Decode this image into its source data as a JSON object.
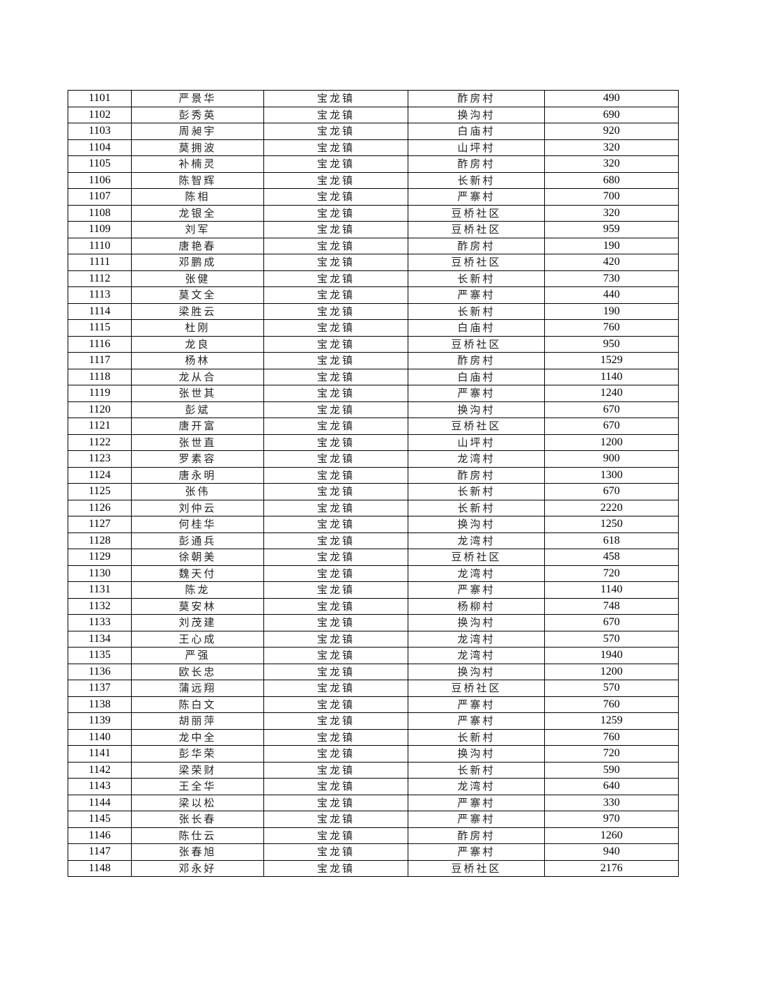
{
  "rows": [
    [
      "1101",
      "严景华",
      "宝龙镇",
      "酢房村",
      "490"
    ],
    [
      "1102",
      "彭秀英",
      "宝龙镇",
      "换沟村",
      "690"
    ],
    [
      "1103",
      "周昶宇",
      "宝龙镇",
      "白庙村",
      "920"
    ],
    [
      "1104",
      "莫拥波",
      "宝龙镇",
      "山坪村",
      "320"
    ],
    [
      "1105",
      "补楠灵",
      "宝龙镇",
      "酢房村",
      "320"
    ],
    [
      "1106",
      "陈智辉",
      "宝龙镇",
      "长新村",
      "680"
    ],
    [
      "1107",
      "陈相",
      "宝龙镇",
      "严寨村",
      "700"
    ],
    [
      "1108",
      "龙银全",
      "宝龙镇",
      "豆桥社区",
      "320"
    ],
    [
      "1109",
      "刘军",
      "宝龙镇",
      "豆桥社区",
      "959"
    ],
    [
      "1110",
      "唐艳春",
      "宝龙镇",
      "酢房村",
      "190"
    ],
    [
      "1111",
      "邓鹏成",
      "宝龙镇",
      "豆桥社区",
      "420"
    ],
    [
      "1112",
      "张健",
      "宝龙镇",
      "长新村",
      "730"
    ],
    [
      "1113",
      "莫文全",
      "宝龙镇",
      "严寨村",
      "440"
    ],
    [
      "1114",
      "梁胜云",
      "宝龙镇",
      "长新村",
      "190"
    ],
    [
      "1115",
      "杜刚",
      "宝龙镇",
      "白庙村",
      "760"
    ],
    [
      "1116",
      "龙良",
      "宝龙镇",
      "豆桥社区",
      "950"
    ],
    [
      "1117",
      "杨林",
      "宝龙镇",
      "酢房村",
      "1529"
    ],
    [
      "1118",
      "龙从合",
      "宝龙镇",
      "白庙村",
      "1140"
    ],
    [
      "1119",
      "张世其",
      "宝龙镇",
      "严寨村",
      "1240"
    ],
    [
      "1120",
      "彭斌",
      "宝龙镇",
      "换沟村",
      "670"
    ],
    [
      "1121",
      "唐开富",
      "宝龙镇",
      "豆桥社区",
      "670"
    ],
    [
      "1122",
      "张世直",
      "宝龙镇",
      "山坪村",
      "1200"
    ],
    [
      "1123",
      "罗素容",
      "宝龙镇",
      "龙湾村",
      "900"
    ],
    [
      "1124",
      "唐永明",
      "宝龙镇",
      "酢房村",
      "1300"
    ],
    [
      "1125",
      "张伟",
      "宝龙镇",
      "长新村",
      "670"
    ],
    [
      "1126",
      "刘仲云",
      "宝龙镇",
      "长新村",
      "2220"
    ],
    [
      "1127",
      "何桂华",
      "宝龙镇",
      "换沟村",
      "1250"
    ],
    [
      "1128",
      "彭通兵",
      "宝龙镇",
      "龙湾村",
      "618"
    ],
    [
      "1129",
      "徐朝美",
      "宝龙镇",
      "豆桥社区",
      "458"
    ],
    [
      "1130",
      "魏天付",
      "宝龙镇",
      "龙湾村",
      "720"
    ],
    [
      "1131",
      "陈龙",
      "宝龙镇",
      "严寨村",
      "1140"
    ],
    [
      "1132",
      "莫安林",
      "宝龙镇",
      "杨柳村",
      "748"
    ],
    [
      "1133",
      "刘茂建",
      "宝龙镇",
      "换沟村",
      "670"
    ],
    [
      "1134",
      "王心成",
      "宝龙镇",
      "龙湾村",
      "570"
    ],
    [
      "1135",
      "严强",
      "宝龙镇",
      "龙湾村",
      "1940"
    ],
    [
      "1136",
      "欧长忠",
      "宝龙镇",
      "换沟村",
      "1200"
    ],
    [
      "1137",
      "蒲远翔",
      "宝龙镇",
      "豆桥社区",
      "570"
    ],
    [
      "1138",
      "陈白文",
      "宝龙镇",
      "严寨村",
      "760"
    ],
    [
      "1139",
      "胡丽萍",
      "宝龙镇",
      "严寨村",
      "1259"
    ],
    [
      "1140",
      "龙中全",
      "宝龙镇",
      "长新村",
      "760"
    ],
    [
      "1141",
      "彭华荣",
      "宝龙镇",
      "换沟村",
      "720"
    ],
    [
      "1142",
      "梁荣财",
      "宝龙镇",
      "长新村",
      "590"
    ],
    [
      "1143",
      "王全华",
      "宝龙镇",
      "龙湾村",
      "640"
    ],
    [
      "1144",
      "梁以松",
      "宝龙镇",
      "严寨村",
      "330"
    ],
    [
      "1145",
      "张长春",
      "宝龙镇",
      "严寨村",
      "970"
    ],
    [
      "1146",
      "陈仕云",
      "宝龙镇",
      "酢房村",
      "1260"
    ],
    [
      "1147",
      "张春旭",
      "宝龙镇",
      "严寨村",
      "940"
    ],
    [
      "1148",
      "邓永好",
      "宝龙镇",
      "豆桥社区",
      "2176"
    ]
  ]
}
